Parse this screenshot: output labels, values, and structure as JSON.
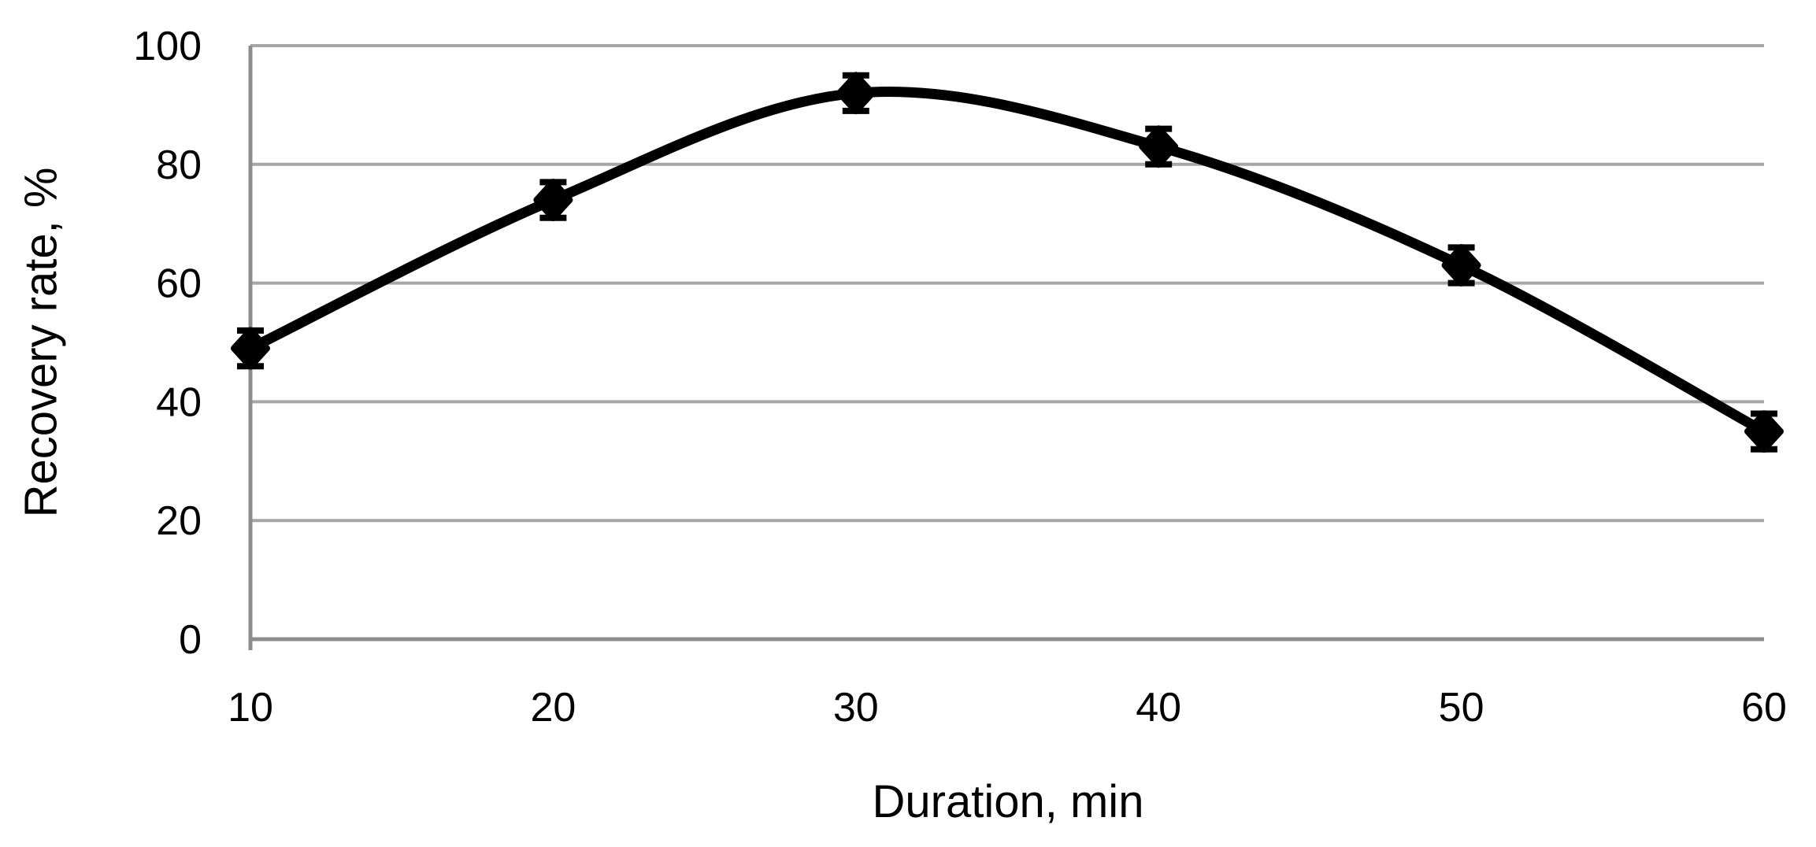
{
  "chart_data": {
    "type": "line",
    "title": "",
    "xlabel": "Duration, min",
    "ylabel": "Recovery rate, %",
    "x": [
      10,
      20,
      30,
      40,
      50,
      60
    ],
    "series": [
      {
        "name": "Recovery rate",
        "values": [
          49,
          74,
          92,
          83,
          63,
          35
        ],
        "error_bars": [
          3,
          3,
          3,
          3,
          3,
          3
        ]
      }
    ],
    "xticks": [
      "10",
      "20",
      "30",
      "40",
      "50",
      "60"
    ],
    "yticks": [
      "0",
      "20",
      "40",
      "60",
      "80",
      "100"
    ],
    "ytick_values": [
      0,
      20,
      40,
      60,
      80,
      100
    ],
    "xtick_values": [
      10,
      20,
      30,
      40,
      50,
      60
    ],
    "xlim": [
      10,
      60
    ],
    "ylim": [
      0,
      100
    ],
    "grid": "horizontal",
    "legend_position": "none",
    "marker": "diamond",
    "smooth": true,
    "line_color": "#000000",
    "marker_color": "#000000",
    "error_bar_color": "#000000",
    "grid_color": "#a6a6a6",
    "axis_color": "#8c8c8c",
    "background": "#ffffff"
  }
}
